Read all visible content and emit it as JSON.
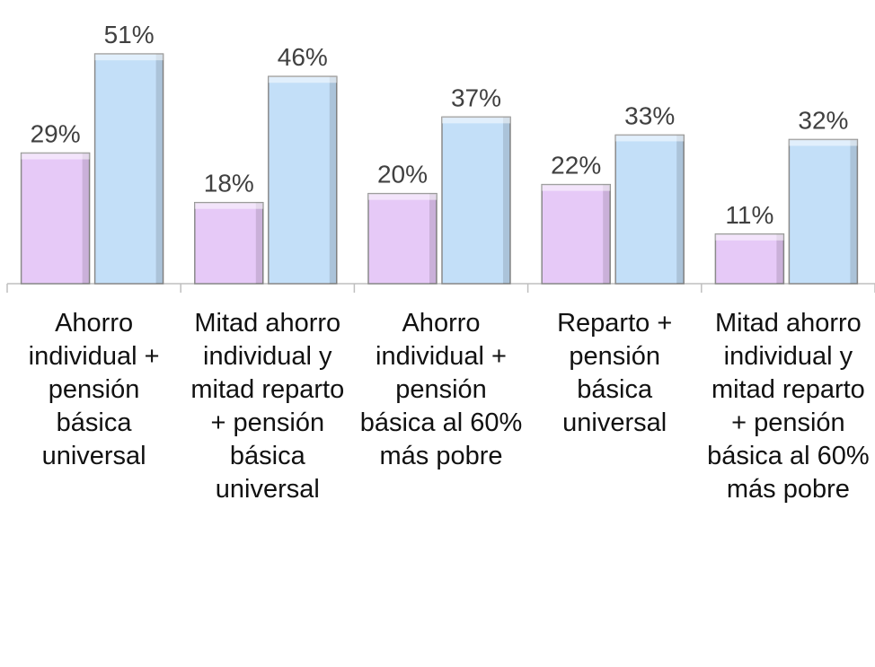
{
  "chart_data": {
    "type": "bar",
    "categories": [
      "Ahorro individual + pensión básica universal",
      "Mitad ahorro individual y mitad reparto + pensión básica universal",
      "Ahorro individual + pensión básica al 60% más pobre",
      "Reparto + pensión básica universal",
      "Mitad ahorro individual y mitad reparto + pensión básica al 60% más pobre"
    ],
    "series": [
      {
        "color": "#e6c9f7",
        "values": [
          29,
          18,
          20,
          22,
          11
        ],
        "value_labels": [
          "29%",
          "18%",
          "20%",
          "22%",
          "11%"
        ]
      },
      {
        "color": "#c3dff8",
        "values": [
          51,
          46,
          37,
          33,
          32
        ],
        "value_labels": [
          "51%",
          "46%",
          "37%",
          "33%",
          "32%"
        ]
      }
    ],
    "ylim": [
      0,
      60
    ]
  }
}
